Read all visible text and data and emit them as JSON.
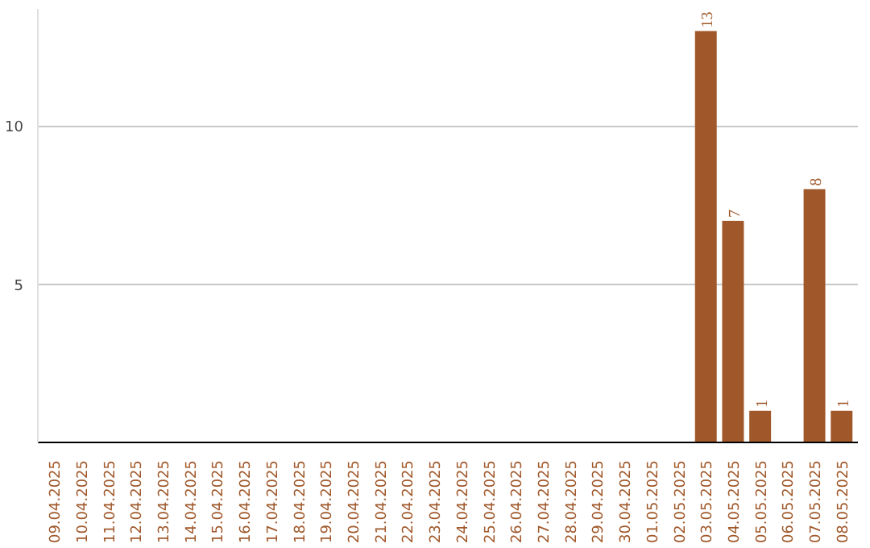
{
  "chart_data": {
    "type": "bar",
    "categories": [
      "09.04.2025",
      "10.04.2025",
      "11.04.2025",
      "12.04.2025",
      "13.04.2025",
      "14.04.2025",
      "15.04.2025",
      "16.04.2025",
      "17.04.2025",
      "18.04.2025",
      "19.04.2025",
      "20.04.2025",
      "21.04.2025",
      "22.04.2025",
      "23.04.2025",
      "24.04.2025",
      "25.04.2025",
      "26.04.2025",
      "27.04.2025",
      "28.04.2025",
      "29.04.2025",
      "30.04.2025",
      "01.05.2025",
      "02.05.2025",
      "03.05.2025",
      "04.05.2025",
      "05.05.2025",
      "06.05.2025",
      "07.05.2025",
      "08.05.2025"
    ],
    "values": [
      null,
      null,
      null,
      null,
      null,
      null,
      null,
      null,
      null,
      null,
      null,
      null,
      null,
      null,
      null,
      null,
      null,
      null,
      null,
      null,
      null,
      null,
      null,
      null,
      13,
      7,
      1,
      null,
      8,
      1
    ],
    "color": "#a0582a",
    "ylim": [
      0,
      13.7
    ],
    "yticks": [
      5,
      10
    ],
    "grid": "y",
    "data_labels": true
  }
}
